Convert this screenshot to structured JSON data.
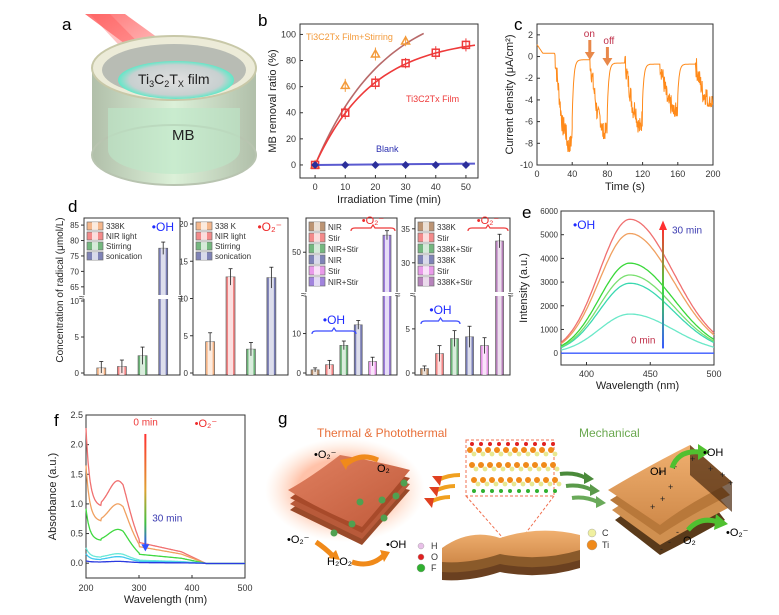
{
  "panel_labels": {
    "a": "a",
    "b": "b",
    "c": "c",
    "d": "d",
    "e": "e",
    "f": "f",
    "g": "g"
  },
  "panel_a": {
    "film_label": "Ti3C2Tx film",
    "liquid_label": "MB"
  },
  "chart_data": [
    {
      "id": "b",
      "type": "line",
      "xlabel": "Irradiation Time (min)",
      "ylabel": "MB removal ratio (%)",
      "xlim": [
        -5,
        54
      ],
      "ylim": [
        -10,
        108
      ],
      "xticks": [
        0,
        10,
        20,
        30,
        40,
        50
      ],
      "yticks": [
        0,
        20,
        40,
        60,
        80,
        100
      ],
      "series": [
        {
          "name": "Ti3C2Tx Film+Stirring",
          "color": "#f39a3a",
          "marker": "triangle",
          "x": [
            0,
            10,
            20,
            30
          ],
          "y": [
            0,
            61,
            85,
            95
          ],
          "err": [
            0,
            5,
            5,
            4
          ],
          "fit_color": "#b86a6a",
          "fit_k": 0.043,
          "fit_a": 128
        },
        {
          "name": "Ti3C2Tx Film",
          "color": "#ee3a3a",
          "marker": "square",
          "x": [
            0,
            10,
            20,
            30,
            40,
            50
          ],
          "y": [
            0,
            40,
            63,
            78,
            86,
            92
          ],
          "err": [
            0,
            5,
            5,
            4,
            5,
            5
          ],
          "fit_color": "#ee3a3a",
          "fit_k": 0.052,
          "fit_a": 98
        },
        {
          "name": "Blank",
          "color": "#2b2f9a",
          "marker": "diamond",
          "x": [
            0,
            10,
            20,
            30,
            40,
            50
          ],
          "y": [
            0,
            0,
            0,
            0,
            0,
            0
          ],
          "err": [
            2,
            2,
            2,
            2,
            2,
            2
          ],
          "fit_color": "#5a5ad0"
        }
      ],
      "annotations": [
        {
          "text": "Ti3C2Tx Film+Stirring",
          "color": "#f39a3a"
        },
        {
          "text": "Ti3C2Tx Film",
          "color": "#ee3a3a"
        },
        {
          "text": "Blank",
          "color": "#2b2fb0"
        }
      ]
    },
    {
      "id": "c",
      "type": "line",
      "xlabel": "Time (s)",
      "ylabel": "Current density (μA/cm²)",
      "xlim": [
        0,
        200
      ],
      "ylim": [
        -10,
        3
      ],
      "xticks": [
        0,
        40,
        80,
        120,
        160,
        200
      ],
      "yticks": [
        -10,
        -8,
        -6,
        -4,
        -2,
        0,
        2
      ],
      "color": "#ff8a1a",
      "cycles": [
        {
          "on": 20,
          "off": 40,
          "dark": 0.3,
          "light_mean": -6.5,
          "light_min": -8.8
        },
        {
          "on": 60,
          "off": 80,
          "dark": -0.3,
          "light_mean": -5.6,
          "light_min": -7.6
        },
        {
          "on": 100,
          "off": 120,
          "dark": -0.6,
          "light_mean": -4.8,
          "light_min": -7.0
        },
        {
          "on": 140,
          "off": 160,
          "dark": -0.7,
          "light_mean": -4.4,
          "light_min": -5.5
        },
        {
          "on": 180,
          "off": 200,
          "dark": -0.7,
          "light_mean": -3.5,
          "light_min": -4.6
        }
      ],
      "start_value": 1.1,
      "annotations": [
        {
          "text": "on",
          "x": 60,
          "color": "#c0304a"
        },
        {
          "text": "off",
          "x": 80,
          "color": "#c0304a"
        }
      ],
      "arrow_color": "#e8884a"
    },
    {
      "id": "d",
      "type": "bar",
      "ylabel": "Concentration of radical (μmol/L)",
      "subplots": [
        {
          "tag": "•OH",
          "tag_color": "#1f2bff",
          "lower_range": [
            0,
            10
          ],
          "upper_range": [
            63,
            86
          ],
          "lower_ticks": [
            0,
            5,
            10
          ],
          "upper_ticks": [
            65,
            70,
            75,
            80,
            85
          ],
          "legend": [
            "338K",
            "NIR light",
            "Stirring",
            "sonication"
          ],
          "bars": [
            {
              "label": "338K",
              "value": 0.7,
              "err": 0.9,
              "color": "#f29a5c"
            },
            {
              "label": "NIR light",
              "value": 0.9,
              "err": 0.9,
              "color": "#ee5a5a"
            },
            {
              "label": "Stirring",
              "value": 2.4,
              "err": 1.2,
              "color": "#3a9a4a"
            },
            {
              "label": "sonication",
              "value": 77.5,
              "err": 2.0,
              "color": "#4a4f9a"
            }
          ]
        },
        {
          "tag": "•O₂⁻",
          "tag_color": "#ee2a2a",
          "lower_range": [
            0,
            20
          ],
          "upper_range": null,
          "lower_ticks": [
            0,
            5,
            10,
            15,
            20
          ],
          "upper_ticks": [],
          "legend": [
            "338 K",
            "NIR light",
            "Stirring",
            "sonication"
          ],
          "bars": [
            {
              "label": "338 K",
              "value": 4.2,
              "err": 1.2,
              "color": "#f29a5c"
            },
            {
              "label": "NIR light",
              "value": 12.9,
              "err": 1.1,
              "color": "#ee5a5a"
            },
            {
              "label": "Stirring",
              "value": 3.2,
              "err": 0.9,
              "color": "#3a9a4a"
            },
            {
              "label": "sonication",
              "value": 12.8,
              "err": 1.4,
              "color": "#4a4f9a"
            }
          ]
        },
        {
          "tag_oh": "•OH",
          "tag_o2": "•O₂⁻",
          "lower_range": [
            0,
            19
          ],
          "upper_range": [
            40,
            58
          ],
          "lower_ticks": [
            0,
            10
          ],
          "upper_ticks": [
            50
          ],
          "legend": [
            "NIR",
            "Stir",
            "NIR+Stir",
            "NIR",
            "Stir",
            "NIR+Stir"
          ],
          "bars": [
            {
              "label": "NIR",
              "value": 0.8,
              "err": 0.5,
              "color": "#a0683a"
            },
            {
              "label": "Stir",
              "value": 2.1,
              "err": 1.1,
              "color": "#ee5a5a"
            },
            {
              "label": "NIR+Stir",
              "value": 7.0,
              "err": 1.1,
              "color": "#3a9a4a"
            },
            {
              "label": "NIR",
              "value": 12.2,
              "err": 1.1,
              "color": "#4a4f9a"
            },
            {
              "label": "Stir",
              "value": 2.9,
              "err": 1.1,
              "color": "#e070e0"
            },
            {
              "label": "NIR+Stir",
              "value": 54.5,
              "err": 1.2,
              "color": "#7a4fd0"
            }
          ]
        },
        {
          "tag_oh": "•OH",
          "tag_o2": "•O₂⁻",
          "lower_range": [
            0,
            8.5
          ],
          "upper_range": [
            26,
            36
          ],
          "lower_ticks": [
            0,
            5
          ],
          "upper_ticks": [
            30,
            35
          ],
          "legend": [
            "338K",
            "Stir",
            "338K+Stir",
            "338K",
            "Stir",
            "338K+Stir"
          ],
          "bars": [
            {
              "label": "338K",
              "value": 0.5,
              "err": 0.3,
              "color": "#a0683a"
            },
            {
              "label": "Stir",
              "value": 2.2,
              "err": 0.9,
              "color": "#ee5a5a"
            },
            {
              "label": "338K+Stir",
              "value": 3.9,
              "err": 0.9,
              "color": "#3a9a4a"
            },
            {
              "label": "338K",
              "value": 4.1,
              "err": 1.2,
              "color": "#4a4f9a"
            },
            {
              "label": "Stir",
              "value": 3.1,
              "err": 0.9,
              "color": "#e070e0"
            },
            {
              "label": "338K+Stir",
              "value": 33.2,
              "err": 1.0,
              "color": "#9a4fa0"
            }
          ]
        }
      ]
    },
    {
      "id": "e",
      "type": "line",
      "xlabel": "Wavelength (nm)",
      "ylabel": "Intensity (a.u.)",
      "xlim": [
        380,
        500
      ],
      "ylim": [
        -500,
        6000
      ],
      "xticks": [
        400,
        450,
        500
      ],
      "yticks": [
        0,
        1000,
        2000,
        3000,
        4000,
        5000,
        6000
      ],
      "peak_x": 434,
      "series": [
        {
          "name": "0 min",
          "peak": 0,
          "color": "#3a5aff"
        },
        {
          "name": "t1",
          "peak": 1650,
          "color": "#6ae8c8"
        },
        {
          "name": "t2",
          "peak": 2950,
          "color": "#3ad8b0"
        },
        {
          "name": "t3",
          "peak": 3300,
          "color": "#7ae070"
        },
        {
          "name": "t4",
          "peak": 3800,
          "color": "#3ad83a"
        },
        {
          "name": "t5",
          "peak": 5050,
          "color": "#f0a060"
        },
        {
          "name": "30 min",
          "peak": 5650,
          "color": "#f07070"
        }
      ],
      "tag": "•OH",
      "tag_color": "#1f2bff",
      "annotations": [
        {
          "text": "30 min",
          "color": "#3a3ab0"
        },
        {
          "text": "0 min",
          "color": "#c0304a"
        }
      ]
    },
    {
      "id": "f",
      "type": "line",
      "xlabel": "Wavelength (nm)",
      "ylabel": "Absorbance (a.u.)",
      "xlim": [
        200,
        500
      ],
      "ylim": [
        -0.25,
        2.5
      ],
      "xticks": [
        200,
        300,
        400,
        500
      ],
      "yticks": [
        0.0,
        0.5,
        1.0,
        1.5,
        2.0,
        2.5
      ],
      "series": [
        {
          "name": "0 min",
          "start": 2.28,
          "valley": 0.95,
          "peak": 1.39,
          "shoulder": 0.35,
          "color": "#f07070"
        },
        {
          "name": "t1",
          "start": 1.65,
          "valley": 0.7,
          "peak": 1.0,
          "shoulder": 0.28,
          "color": "#f0a060"
        },
        {
          "name": "t2",
          "start": 0.92,
          "valley": 0.38,
          "peak": 0.57,
          "shoulder": 0.15,
          "color": "#40d840"
        },
        {
          "name": "t3",
          "start": 0.26,
          "valley": 0.1,
          "peak": 0.16,
          "shoulder": 0.05,
          "color": "#6ae8d8"
        },
        {
          "name": "t4",
          "start": 0.16,
          "valley": 0.06,
          "peak": 0.11,
          "shoulder": 0.03,
          "color": "#40c8f0"
        },
        {
          "name": "30 min",
          "start": 0.04,
          "valley": 0.02,
          "peak": 0.03,
          "shoulder": 0.01,
          "color": "#2a3ae0"
        }
      ],
      "tag": "•O₂⁻",
      "tag_color": "#ee2a2a",
      "annotations": [
        {
          "text": "0 min",
          "color": "#ee3a3a"
        },
        {
          "text": "30 min",
          "color": "#3a3ab0"
        }
      ]
    }
  ],
  "panel_g": {
    "left_title": "Thermal & Photothermal",
    "left_title_color": "#e8703a",
    "right_title": "Mechanical",
    "right_title_color": "#6aa84f",
    "labels_left": {
      "o2_radical_top": "•O₂⁻",
      "o2": "O₂",
      "o2_radical_bottom": "•O₂⁻",
      "h2o2": "H₂O₂",
      "oh_radical": "•OH"
    },
    "labels_right": {
      "oh": "OH",
      "oh_radical": "•OH",
      "o2": "O₂",
      "o2_radical": "•O₂⁻"
    },
    "legend_atoms": [
      {
        "symbol": "H",
        "color": "#e8c0e8"
      },
      {
        "symbol": "O",
        "color": "#e02020"
      },
      {
        "symbol": "F",
        "color": "#30b030"
      },
      {
        "symbol": "C",
        "color": "#f0f0a0"
      },
      {
        "symbol": "Ti",
        "color": "#f08a1a"
      }
    ]
  }
}
